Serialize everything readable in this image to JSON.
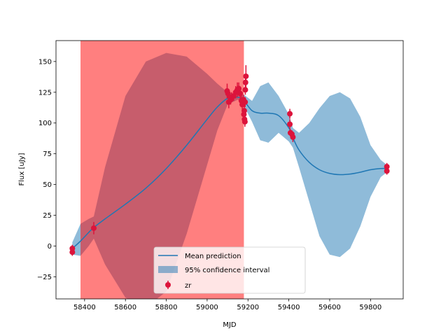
{
  "chart_data": {
    "type": "line",
    "xlabel": "MJD",
    "ylabel": "Flux [uJy]",
    "xlim": [
      58260,
      59960
    ],
    "ylim": [
      -43,
      167
    ],
    "xticks": [
      58400,
      58600,
      58800,
      59000,
      59200,
      59400,
      59600,
      59800
    ],
    "yticks": [
      -25,
      0,
      25,
      50,
      75,
      100,
      125,
      150
    ],
    "shaded_region": {
      "x": [
        58380,
        59180
      ],
      "color": "#ff0000",
      "alpha": 0.5
    },
    "mean_prediction": {
      "name": "Mean prediction",
      "color": "#1f77b4",
      "x": [
        58340,
        58380,
        58420,
        58445,
        58500,
        58600,
        58700,
        58800,
        58900,
        59000,
        59050,
        59100,
        59150,
        59180,
        59220,
        59260,
        59300,
        59350,
        59400,
        59420,
        59450,
        59500,
        59550,
        59600,
        59650,
        59700,
        59750,
        59800,
        59850,
        59880
      ],
      "y": [
        -2,
        4,
        11,
        15,
        22,
        34,
        47,
        63,
        82,
        103,
        113,
        120,
        121,
        118,
        110,
        108,
        108,
        106,
        96,
        88,
        78,
        68,
        62,
        59,
        58,
        58.5,
        60,
        62,
        63,
        63
      ]
    },
    "confidence_interval": {
      "name": "95% confidence interval",
      "color": "#1f77b4",
      "alpha": 0.5,
      "x": [
        58340,
        58380,
        58420,
        58445,
        58500,
        58600,
        58700,
        58800,
        58900,
        59000,
        59050,
        59100,
        59150,
        59180,
        59220,
        59260,
        59300,
        59350,
        59400,
        59420,
        59450,
        59500,
        59550,
        59600,
        59650,
        59700,
        59750,
        59800,
        59850,
        59880
      ],
      "upper": [
        3,
        18,
        22,
        24,
        64,
        122,
        150,
        157,
        154,
        140,
        132,
        125,
        123,
        123,
        118,
        130,
        133,
        122,
        107,
        96,
        92,
        100,
        112,
        122,
        125,
        120,
        105,
        82,
        70,
        66
      ],
      "lower": [
        -7,
        -8,
        0,
        6,
        -15,
        -42,
        -50,
        -37,
        10,
        66,
        94,
        115,
        119,
        114,
        101,
        86,
        84,
        92,
        85,
        80,
        64,
        36,
        8,
        -7,
        -9,
        -2,
        16,
        40,
        56,
        60
      ]
    },
    "observations": {
      "name": "zr",
      "color": "#dc143c",
      "points": [
        {
          "x": 58340,
          "y": -2,
          "err": 3
        },
        {
          "x": 58340,
          "y": -5,
          "err": 3
        },
        {
          "x": 58445,
          "y": 14.5,
          "err": 5
        },
        {
          "x": 59098,
          "y": 126,
          "err": 6
        },
        {
          "x": 59102,
          "y": 124,
          "err": 4
        },
        {
          "x": 59106,
          "y": 117,
          "err": 5
        },
        {
          "x": 59115,
          "y": 119,
          "err": 4
        },
        {
          "x": 59120,
          "y": 121,
          "err": 4
        },
        {
          "x": 59130,
          "y": 122,
          "err": 4
        },
        {
          "x": 59140,
          "y": 125,
          "err": 5
        },
        {
          "x": 59148,
          "y": 127,
          "err": 6
        },
        {
          "x": 59155,
          "y": 128,
          "err": 5
        },
        {
          "x": 59162,
          "y": 124,
          "err": 5
        },
        {
          "x": 59168,
          "y": 118,
          "err": 5
        },
        {
          "x": 59172,
          "y": 115,
          "err": 4
        },
        {
          "x": 59178,
          "y": 119,
          "err": 4
        },
        {
          "x": 59180,
          "y": 107,
          "err": 5
        },
        {
          "x": 59182,
          "y": 110,
          "err": 5
        },
        {
          "x": 59183,
          "y": 103,
          "err": 4
        },
        {
          "x": 59185,
          "y": 101,
          "err": 4
        },
        {
          "x": 59187,
          "y": 127,
          "err": 4
        },
        {
          "x": 59188,
          "y": 133,
          "err": 5
        },
        {
          "x": 59190,
          "y": 138,
          "err": 9
        },
        {
          "x": 59186,
          "y": 117,
          "err": 4
        },
        {
          "x": 59405,
          "y": 107.5,
          "err": 4
        },
        {
          "x": 59405,
          "y": 99,
          "err": 4
        },
        {
          "x": 59408,
          "y": 92,
          "err": 3
        },
        {
          "x": 59415,
          "y": 91,
          "err": 3
        },
        {
          "x": 59420,
          "y": 88.5,
          "err": 4
        },
        {
          "x": 59880,
          "y": 64.5,
          "err": 3
        },
        {
          "x": 59880,
          "y": 61,
          "err": 3
        }
      ]
    },
    "legend": {
      "position": "bottom-center",
      "entries": [
        "Mean prediction",
        "95% confidence interval",
        "zr"
      ]
    }
  }
}
